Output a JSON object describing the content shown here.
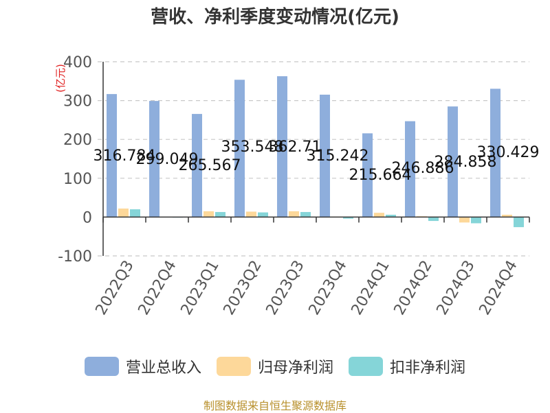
{
  "chart_data": {
    "type": "bar",
    "title": "营收、净利季度变动情况(亿元)",
    "ylabel": "(亿元)",
    "xlabel": "",
    "ylim": [
      -100,
      400
    ],
    "yticks": [
      400,
      300,
      200,
      100,
      0,
      -100
    ],
    "grid": true,
    "legend_position": "bottom",
    "categories": [
      "2022Q3",
      "2022Q4",
      "2023Q1",
      "2023Q2",
      "2023Q3",
      "2023Q4",
      "2024Q1",
      "2024Q2",
      "2024Q3",
      "2024Q4"
    ],
    "series": [
      {
        "name": "营业总收入",
        "color": "#8eaedc",
        "values": [
          316.784,
          299.049,
          265.567,
          353.548,
          362.71,
          315.242,
          215.664,
          246.886,
          284.858,
          330.429
        ],
        "labels": [
          "316.784",
          "299.049",
          "265.567",
          "353.548",
          "362.71",
          "315.242",
          "215.664",
          "246.886",
          "284.858",
          "330.429"
        ]
      },
      {
        "name": "归母净利润",
        "color": "#fdd89a",
        "values": [
          22,
          0.5,
          15,
          14,
          15,
          1,
          11,
          2,
          -14,
          6
        ]
      },
      {
        "name": "扣非净利润",
        "color": "#85d5d8",
        "values": [
          20,
          -1,
          13,
          12,
          13,
          -4,
          6,
          -10,
          -16,
          -26
        ]
      }
    ]
  },
  "source": "制图数据来自恒生聚源数据库"
}
